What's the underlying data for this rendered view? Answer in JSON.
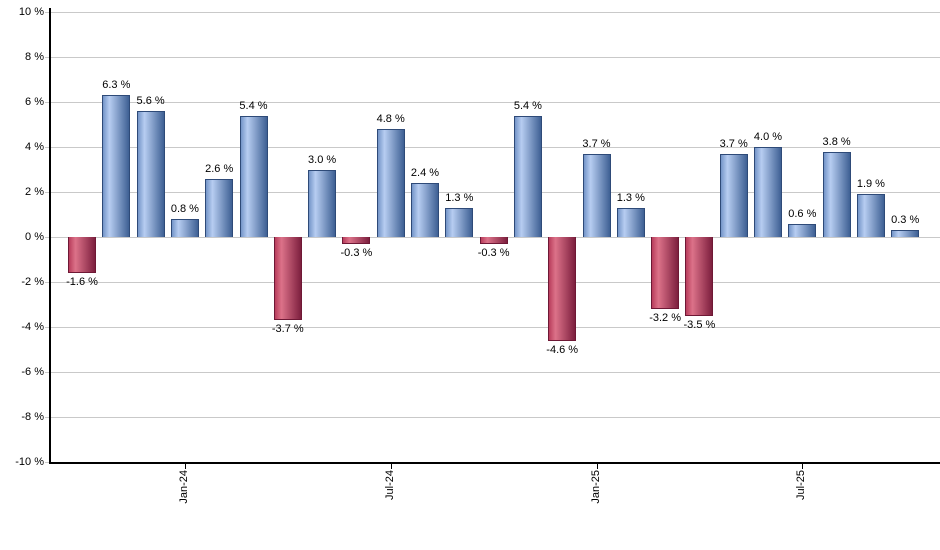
{
  "chart_data": {
    "type": "bar",
    "title": "",
    "xlabel": "",
    "ylabel": "",
    "ylim": [
      -10,
      10
    ],
    "grid": true,
    "legend": false,
    "y_tick_values": [
      10,
      8,
      6,
      4,
      2,
      0,
      -2,
      -4,
      -6,
      -8,
      -10
    ],
    "y_tick_labels": [
      "10 %",
      "8 %",
      "6 %",
      "4 %",
      "2 %",
      "0 %",
      "-2 %",
      "-4 %",
      "-6 %",
      "-8 %",
      "-10 %"
    ],
    "values": [
      -1.6,
      6.3,
      5.6,
      0.8,
      2.6,
      5.4,
      -3.7,
      3.0,
      -0.3,
      4.8,
      2.4,
      1.3,
      -0.3,
      5.4,
      -4.6,
      3.7,
      1.3,
      -3.2,
      -3.5,
      3.7,
      4.0,
      0.6,
      3.8,
      1.9,
      0.3
    ],
    "bar_labels": [
      "-1.6 %",
      "6.3 %",
      "5.6 %",
      "0.8 %",
      "2.6 %",
      "5.4 %",
      "-3.7 %",
      "3.0 %",
      "-0.3 %",
      "4.8 %",
      "2.4 %",
      "1.3 %",
      "-0.3 %",
      "5.4 %",
      "-4.6 %",
      "3.7 %",
      "1.3 %",
      "-3.2 %",
      "-3.5 %",
      "3.7 %",
      "4.0 %",
      "0.6 %",
      "3.8 %",
      "1.9 %",
      "0.3 %"
    ],
    "x_ticks": [
      {
        "index": 3,
        "label": "Jan-24"
      },
      {
        "index": 9,
        "label": "Jul-24"
      },
      {
        "index": 15,
        "label": "Jan-25"
      },
      {
        "index": 21,
        "label": "Jul-25"
      }
    ],
    "colors": {
      "background": "#ffffff",
      "gridline": "#c9c9c9",
      "axis": "#000000",
      "text": "#000000",
      "positive_gradient": [
        "#7495c8",
        "#b7cdf1",
        "#3e6094"
      ],
      "positive_border": "#2e4a78",
      "negative_gradient": [
        "#b83d5c",
        "#dc7289",
        "#7d1f3e"
      ],
      "negative_border": "#6e1835"
    }
  }
}
